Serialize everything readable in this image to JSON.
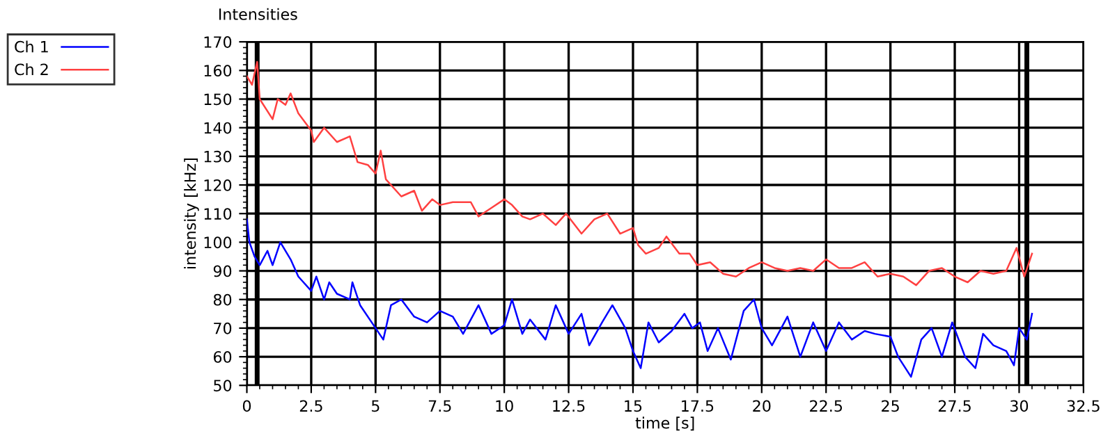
{
  "chart_data": {
    "type": "line",
    "title": "Intensities",
    "xlabel": "time [s]",
    "ylabel": "intensity [kHz]",
    "xlim": [
      0,
      32.5
    ],
    "xticks": [
      0,
      2.5,
      5,
      7.5,
      10,
      12.5,
      15,
      17.5,
      20,
      22.5,
      25,
      27.5,
      30,
      32.5
    ],
    "ylim": [
      50,
      170
    ],
    "yticks": [
      50,
      60,
      70,
      80,
      90,
      100,
      110,
      120,
      130,
      140,
      150,
      160,
      170
    ],
    "grid": true,
    "legend": "top left",
    "marker": "none",
    "line_style": "solid",
    "ref_lines": [
      {
        "axis": "x",
        "value": 0.4,
        "color": "#000000"
      },
      {
        "axis": "x",
        "value": 30.3,
        "color": "#000000"
      }
    ],
    "series": [
      {
        "name": "Ch 1",
        "color": "#0000ff",
        "x": [
          0,
          0.1,
          0.3,
          0.5,
          0.8,
          1,
          1.3,
          1.7,
          2,
          2.5,
          2.7,
          3,
          3.2,
          3.5,
          4,
          4.1,
          4.4,
          5,
          5.3,
          5.6,
          6,
          6.5,
          7,
          7.5,
          8,
          8.4,
          9,
          9.5,
          10,
          10.3,
          10.7,
          11,
          11.6,
          12,
          12.5,
          13,
          13.3,
          13.8,
          14.2,
          14.7,
          15,
          15.3,
          15.6,
          16,
          16.5,
          17,
          17.3,
          17.6,
          17.9,
          18.3,
          18.8,
          19.3,
          19.7,
          20,
          20.4,
          21,
          21.5,
          22,
          22.5,
          23,
          23.5,
          24,
          24.4,
          25,
          25.3,
          25.8,
          26.2,
          26.6,
          27,
          27.4,
          27.9,
          28.3,
          28.6,
          29,
          29.5,
          29.8,
          30,
          30.3,
          30.5
        ],
        "values": [
          108,
          100,
          95,
          92,
          97,
          92,
          100,
          94,
          88,
          83,
          88,
          80,
          86,
          82,
          80,
          86,
          78,
          70,
          66,
          78,
          80,
          74,
          72,
          76,
          74,
          68,
          78,
          68,
          71,
          80,
          68,
          73,
          66,
          78,
          68,
          75,
          64,
          72,
          78,
          70,
          62,
          56,
          72,
          65,
          69,
          75,
          70,
          72,
          62,
          70,
          59,
          76,
          80,
          70,
          64,
          74,
          60,
          72,
          62,
          72,
          66,
          69,
          68,
          67,
          60,
          53,
          66,
          70,
          60,
          72,
          60,
          56,
          68,
          64,
          62,
          57,
          70,
          66,
          75
        ]
      },
      {
        "name": "Ch 2",
        "color": "#ff4040",
        "x": [
          0,
          0.2,
          0.4,
          0.5,
          1,
          1.2,
          1.5,
          1.7,
          2,
          2.5,
          2.6,
          3,
          3.5,
          4,
          4.3,
          4.7,
          5,
          5.2,
          5.4,
          6,
          6.5,
          6.8,
          7.2,
          7.5,
          8,
          8.7,
          9,
          9.5,
          10,
          10.3,
          10.7,
          11,
          11.5,
          12,
          12.4,
          13,
          13.5,
          14,
          14.5,
          15,
          15.2,
          15.5,
          16,
          16.3,
          16.8,
          17.2,
          17.5,
          18,
          18.5,
          19,
          19.5,
          20,
          20.5,
          21,
          21.5,
          22,
          22.5,
          23,
          23.5,
          24,
          24.5,
          25,
          25.5,
          26,
          26.5,
          27,
          27.5,
          28,
          28.5,
          29,
          29.5,
          29.9,
          30.2,
          30.5
        ],
        "values": [
          158,
          155,
          163,
          150,
          143,
          150,
          148,
          152,
          145,
          139,
          135,
          140,
          135,
          137,
          128,
          127,
          124,
          132,
          122,
          116,
          118,
          111,
          115,
          113,
          114,
          114,
          109,
          112,
          115,
          113,
          109,
          108,
          110,
          106,
          110,
          103,
          108,
          110,
          103,
          105,
          99,
          96,
          98,
          102,
          96,
          96,
          92,
          93,
          89,
          88,
          91,
          93,
          91,
          90,
          91,
          90,
          94,
          91,
          91,
          93,
          88,
          89,
          88,
          85,
          90,
          91,
          88,
          86,
          90,
          89,
          90,
          98,
          88,
          96
        ]
      }
    ]
  }
}
